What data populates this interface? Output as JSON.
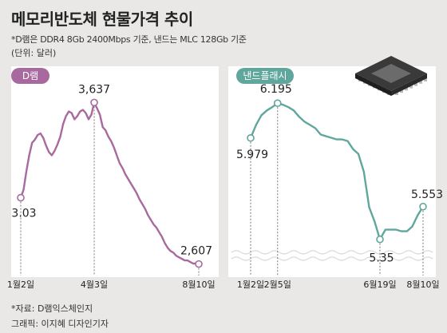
{
  "title": "메모리반도체 현물가격 추이",
  "note_spec": "*D램은 DDR4 8Gb 2400Mbps 기준, 낸드는 MLC 128Gb 기준",
  "note_unit": "(단위: 달러)",
  "source": "*자료: D램익스체인지",
  "credit": "그래픽: 이지혜 디자인기자",
  "colors": {
    "dram": "#a86a9e",
    "nand": "#5fa79c",
    "background": "#e9e8e6"
  },
  "icons": {
    "chip": "chip-icon"
  },
  "chart_data": [
    {
      "type": "line",
      "name": "D램",
      "label": "D램",
      "color": "#a86a9e",
      "xlabel": "",
      "ylabel": "",
      "x_ticks": [
        "1월2일",
        "4월3일",
        "8월10일"
      ],
      "series": [
        {
          "x": [
            "1월2일",
            "1월5일",
            "1월9일",
            "1월12일",
            "1월16일",
            "1월19일",
            "1월23일",
            "1월26일",
            "1월30일",
            "2월2일",
            "2월6일",
            "2월9일",
            "2월13일",
            "2월16일",
            "2월20일",
            "2월23일",
            "2월27일",
            "3월2일",
            "3월6일",
            "3월9일",
            "3월13일",
            "3월16일",
            "3월20일",
            "3월23일",
            "3월27일",
            "3월30일",
            "4월3일",
            "4월7일",
            "4월10일",
            "4월14일",
            "4월17일",
            "4월21일",
            "4월24일",
            "4월28일",
            "5월1일",
            "5월5일",
            "5월8일",
            "5월12일",
            "5월15일",
            "5월19일",
            "5월22일",
            "5월26일",
            "5월29일",
            "6월2일",
            "6월5일",
            "6월9일",
            "6월12일",
            "6월16일",
            "6월19일",
            "6월23일",
            "6월26일",
            "6월30일",
            "7월3일",
            "7월7일",
            "7월10일",
            "7월14일",
            "7월17일",
            "7월21일",
            "7월24일",
            "7월28일",
            "7월31일",
            "8월4일",
            "8월7일",
            "8월10일"
          ],
          "values": [
            3.03,
            3.08,
            3.2,
            3.3,
            3.38,
            3.4,
            3.43,
            3.44,
            3.41,
            3.36,
            3.32,
            3.3,
            3.33,
            3.37,
            3.42,
            3.5,
            3.55,
            3.58,
            3.57,
            3.53,
            3.55,
            3.58,
            3.59,
            3.57,
            3.53,
            3.56,
            3.637,
            3.6,
            3.56,
            3.48,
            3.46,
            3.42,
            3.39,
            3.35,
            3.3,
            3.25,
            3.22,
            3.18,
            3.15,
            3.12,
            3.09,
            3.06,
            3.02,
            2.99,
            2.96,
            2.92,
            2.89,
            2.86,
            2.84,
            2.81,
            2.78,
            2.74,
            2.71,
            2.69,
            2.68,
            2.66,
            2.65,
            2.64,
            2.63,
            2.63,
            2.62,
            2.61,
            2.61,
            2.607
          ]
        }
      ],
      "labeled_points": [
        {
          "x": "1월2일",
          "value": "3.03"
        },
        {
          "x": "4월3일",
          "value": "3,637"
        },
        {
          "x": "8월10일",
          "value": "2,607"
        }
      ]
    },
    {
      "type": "line",
      "name": "낸드플래시",
      "label": "낸드플래시",
      "color": "#5fa79c",
      "xlabel": "",
      "ylabel": "",
      "x_ticks": [
        "1월2일",
        "2월5일",
        "6월19일",
        "8월10일"
      ],
      "series": [
        {
          "x": [
            "1월2일",
            "1월9일",
            "1월16일",
            "1월23일",
            "1월30일",
            "2월5일",
            "2월13일",
            "2월20일",
            "2월27일",
            "3월6일",
            "3월13일",
            "3월20일",
            "3월27일",
            "4월3일",
            "4월10일",
            "4월17일",
            "4월24일",
            "5월1일",
            "5월8일",
            "5월15일",
            "5월22일",
            "5월29일",
            "6월5일",
            "6월12일",
            "6월19일",
            "6월26일",
            "7월3일",
            "7월10일",
            "7월17일",
            "7월24일",
            "7월31일",
            "8월5일",
            "8월10일"
          ],
          "values": [
            5.979,
            6.06,
            6.12,
            6.15,
            6.17,
            6.195,
            6.185,
            6.17,
            6.15,
            6.11,
            6.08,
            6.06,
            6.04,
            6.0,
            5.99,
            5.98,
            5.97,
            5.97,
            5.96,
            5.91,
            5.88,
            5.77,
            5.55,
            5.46,
            5.35,
            5.41,
            5.41,
            5.41,
            5.4,
            5.4,
            5.43,
            5.5,
            5.553
          ]
        }
      ],
      "labeled_points": [
        {
          "x": "1월2일",
          "value": "5.979"
        },
        {
          "x": "2월5일",
          "value": "6.195"
        },
        {
          "x": "6월19일",
          "value": "5.35"
        },
        {
          "x": "8월10일",
          "value": "5.553"
        }
      ]
    }
  ]
}
